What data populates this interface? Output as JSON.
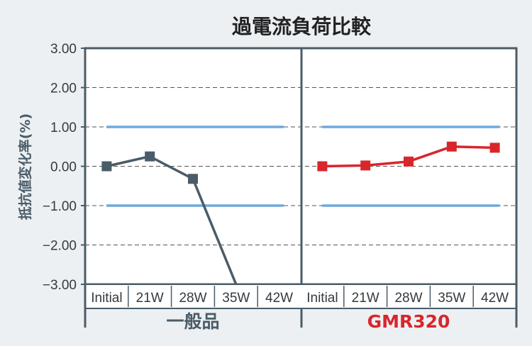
{
  "chart_data": {
    "type": "line",
    "title": "過電流負荷比較",
    "ylabel": "抵抗値変化率(%)",
    "xlabel": "",
    "ylim": [
      -3.0,
      3.0
    ],
    "y_ticks": [
      "3.00",
      "2.00",
      "1.00",
      "0.00",
      "−1.00",
      "−2.00",
      "−3.00"
    ],
    "y_tick_values": [
      3,
      2,
      1,
      0,
      -1,
      -2,
      -3
    ],
    "grid": true,
    "reference_lines": [
      1.0,
      -1.0
    ],
    "reference_color": "#6fa8dc",
    "panels": [
      {
        "group_label": "一般品",
        "group_color": "#4a5c68",
        "categories": [
          "Initial",
          "21W",
          "28W",
          "35W",
          "42W"
        ],
        "series": [
          {
            "color": "#4a5c68",
            "values": [
              0.0,
              0.25,
              -0.32,
              -3.0,
              null
            ]
          }
        ]
      },
      {
        "group_label": "GMR320",
        "group_color": "#d8262c",
        "categories": [
          "Initial",
          "21W",
          "28W",
          "35W",
          "42W"
        ],
        "series": [
          {
            "color": "#d8262c",
            "values": [
              0.0,
              0.02,
              0.12,
              0.5,
              0.47
            ]
          }
        ]
      }
    ]
  }
}
